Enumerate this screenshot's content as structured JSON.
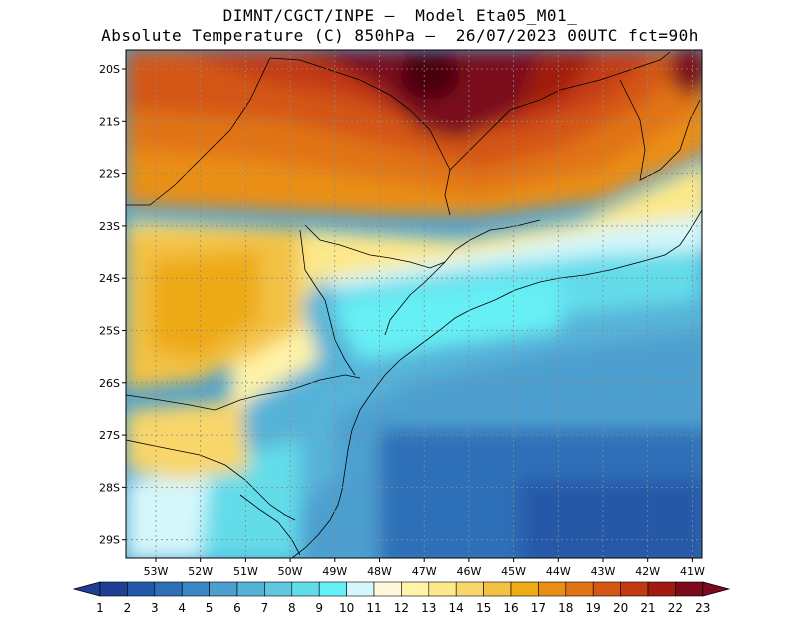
{
  "header": {
    "line1": "DIMNT/CGCT/INPE –  Model Eta05_M01_",
    "line2": "Absolute Temperature (C) 850hPa –  26/07/2023 00UTC fct=90h"
  },
  "map": {
    "lon_range": [
      -53.8,
      -40.6
    ],
    "lat_range": [
      -29.5,
      -19.7
    ],
    "lat_ticks": [
      "20S",
      "21S",
      "22S",
      "23S",
      "24S",
      "25S",
      "26S",
      "27S",
      "28S",
      "29S"
    ],
    "lon_ticks": [
      "53W",
      "52W",
      "51W",
      "50W",
      "49W",
      "48W",
      "47W",
      "46W",
      "45W",
      "44W",
      "43W",
      "42W",
      "41W"
    ],
    "gridlines": true
  },
  "colorbar": {
    "labels": [
      "1",
      "2",
      "3",
      "4",
      "5",
      "6",
      "7",
      "8",
      "9",
      "10",
      "11",
      "12",
      "13",
      "14",
      "15",
      "16",
      "17",
      "18",
      "19",
      "20",
      "21",
      "22",
      "23"
    ],
    "colors": [
      "#1f3f95",
      "#2558a8",
      "#2e6fb8",
      "#3b86c4",
      "#4d9fcf",
      "#56b3d8",
      "#5fc8e0",
      "#63dcea",
      "#66f0f5",
      "#d4f7fb",
      "#fff9dc",
      "#fff3a8",
      "#fde88a",
      "#f8d669",
      "#f3c244",
      "#eeaa17",
      "#ea8f14",
      "#e17414",
      "#d45714",
      "#c33a12",
      "#a11a10",
      "#7c0a1c"
    ]
  }
}
